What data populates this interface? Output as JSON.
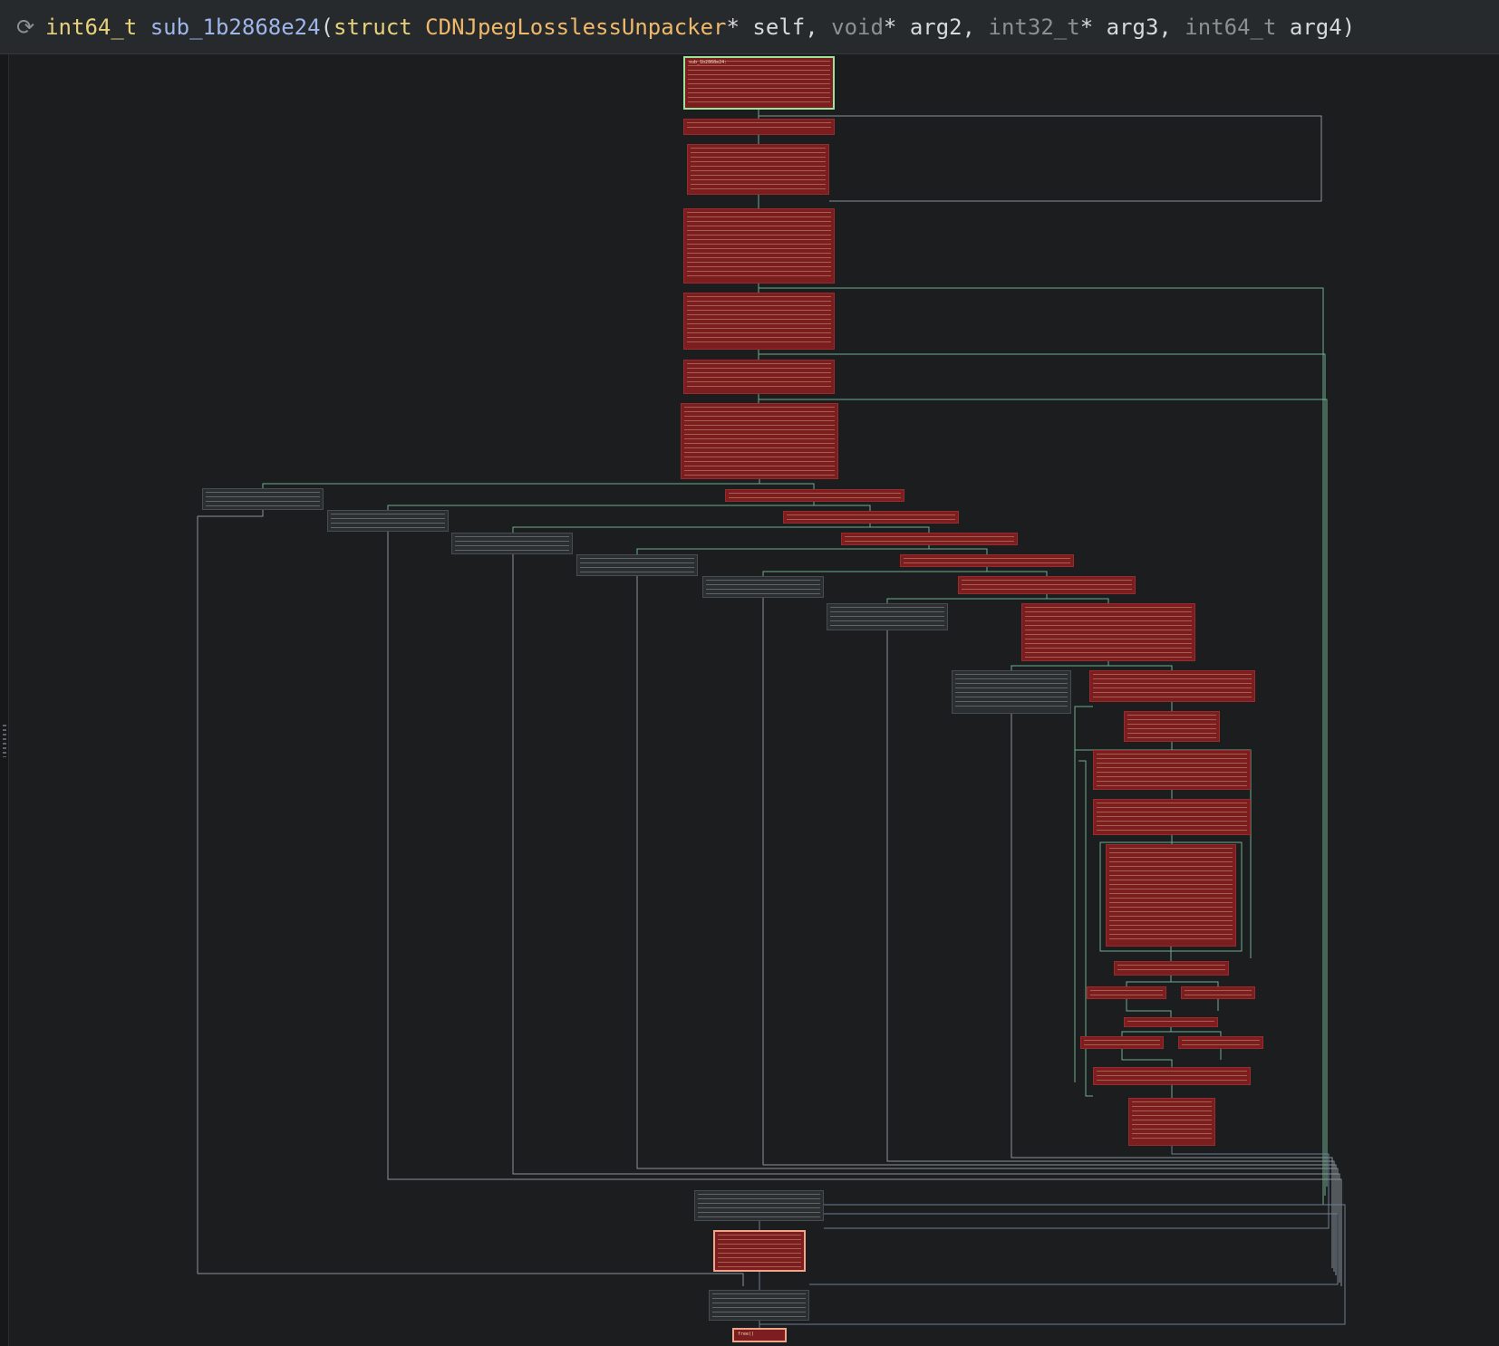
{
  "header": {
    "return_type": "int64_t",
    "function_name": "sub_1b2868e24",
    "open_paren": "(",
    "p1_keyword": "struct",
    "p1_type": "CDNJpegLosslessUnpacker",
    "p1_ptr": "*",
    "p1_name": "self",
    "sep1": ",",
    "p2_type": "void",
    "p2_ptr": "*",
    "p2_name": "arg2",
    "sep2": ",",
    "p3_type": "int32_t",
    "p3_ptr": "*",
    "p3_name": "arg3",
    "sep3": ",",
    "p4_type": "int64_t",
    "p4_name": "arg4",
    "close_paren": ")"
  },
  "colors": {
    "background": "#1b1d1e",
    "block_red": "#7c1d1f",
    "block_dark": "#2b2f32",
    "entry_border": "#9ce39a",
    "exit_border": "#f0a48a",
    "edge_green": "#6fae8f",
    "edge_blue": "#6c7f98",
    "edge_gray": "#8a9299"
  },
  "graph": {
    "entry_label": "sub_1b2868e24:",
    "exit_label": "free()"
  }
}
